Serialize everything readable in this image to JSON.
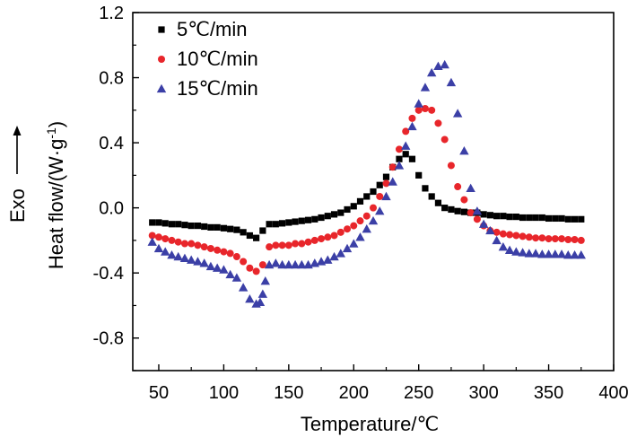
{
  "chart_data": {
    "type": "scatter",
    "xlabel": "Temperature/℃",
    "ylabel": "Heat flow/(W·g",
    "ylabel_sup": "-1",
    "ylabel_close": ")",
    "side_label": "Exo",
    "xlim": [
      30,
      400
    ],
    "ylim": [
      -1.0,
      1.2
    ],
    "xticks": [
      50,
      100,
      150,
      200,
      250,
      300,
      350,
      400
    ],
    "yticks": [
      -0.8,
      -0.4,
      0.0,
      0.4,
      0.8,
      1.2
    ],
    "ytick_labels": [
      "-0.8",
      "-0.4",
      "0.0",
      "0.4",
      "0.8",
      "1.2"
    ],
    "legend_position": "top-left",
    "series": [
      {
        "name": "5℃/min",
        "marker": "square",
        "color": "#000000",
        "points": [
          [
            45,
            -0.09
          ],
          [
            50,
            -0.09
          ],
          [
            55,
            -0.095
          ],
          [
            60,
            -0.1
          ],
          [
            65,
            -0.1
          ],
          [
            70,
            -0.105
          ],
          [
            75,
            -0.11
          ],
          [
            80,
            -0.11
          ],
          [
            85,
            -0.115
          ],
          [
            90,
            -0.12
          ],
          [
            95,
            -0.12
          ],
          [
            100,
            -0.125
          ],
          [
            105,
            -0.13
          ],
          [
            110,
            -0.135
          ],
          [
            115,
            -0.15
          ],
          [
            120,
            -0.17
          ],
          [
            125,
            -0.185
          ],
          [
            130,
            -0.14
          ],
          [
            135,
            -0.1
          ],
          [
            140,
            -0.1
          ],
          [
            145,
            -0.095
          ],
          [
            150,
            -0.09
          ],
          [
            155,
            -0.085
          ],
          [
            160,
            -0.08
          ],
          [
            165,
            -0.075
          ],
          [
            170,
            -0.07
          ],
          [
            175,
            -0.06
          ],
          [
            180,
            -0.05
          ],
          [
            185,
            -0.04
          ],
          [
            190,
            -0.03
          ],
          [
            195,
            -0.01
          ],
          [
            200,
            0.01
          ],
          [
            205,
            0.04
          ],
          [
            210,
            0.07
          ],
          [
            215,
            0.1
          ],
          [
            220,
            0.14
          ],
          [
            225,
            0.19
          ],
          [
            230,
            0.25
          ],
          [
            235,
            0.3
          ],
          [
            240,
            0.33
          ],
          [
            245,
            0.3
          ],
          [
            250,
            0.2
          ],
          [
            255,
            0.12
          ],
          [
            260,
            0.07
          ],
          [
            265,
            0.03
          ],
          [
            270,
            0.0
          ],
          [
            275,
            -0.01
          ],
          [
            280,
            -0.02
          ],
          [
            285,
            -0.025
          ],
          [
            290,
            -0.03
          ],
          [
            295,
            -0.03
          ],
          [
            300,
            -0.04
          ],
          [
            305,
            -0.045
          ],
          [
            310,
            -0.05
          ],
          [
            315,
            -0.05
          ],
          [
            320,
            -0.055
          ],
          [
            325,
            -0.055
          ],
          [
            330,
            -0.06
          ],
          [
            335,
            -0.06
          ],
          [
            340,
            -0.06
          ],
          [
            345,
            -0.06
          ],
          [
            350,
            -0.065
          ],
          [
            355,
            -0.065
          ],
          [
            360,
            -0.065
          ],
          [
            365,
            -0.07
          ],
          [
            370,
            -0.07
          ],
          [
            375,
            -0.07
          ]
        ]
      },
      {
        "name": "10℃/min",
        "marker": "circle",
        "color": "#e8262b",
        "points": [
          [
            45,
            -0.17
          ],
          [
            50,
            -0.18
          ],
          [
            55,
            -0.19
          ],
          [
            60,
            -0.2
          ],
          [
            65,
            -0.21
          ],
          [
            70,
            -0.22
          ],
          [
            75,
            -0.22
          ],
          [
            80,
            -0.23
          ],
          [
            85,
            -0.24
          ],
          [
            90,
            -0.25
          ],
          [
            95,
            -0.26
          ],
          [
            100,
            -0.27
          ],
          [
            105,
            -0.28
          ],
          [
            110,
            -0.3
          ],
          [
            115,
            -0.33
          ],
          [
            120,
            -0.37
          ],
          [
            125,
            -0.39
          ],
          [
            130,
            -0.35
          ],
          [
            135,
            -0.24
          ],
          [
            140,
            -0.23
          ],
          [
            145,
            -0.23
          ],
          [
            150,
            -0.23
          ],
          [
            155,
            -0.22
          ],
          [
            160,
            -0.22
          ],
          [
            165,
            -0.21
          ],
          [
            170,
            -0.2
          ],
          [
            175,
            -0.19
          ],
          [
            180,
            -0.18
          ],
          [
            185,
            -0.17
          ],
          [
            190,
            -0.15
          ],
          [
            195,
            -0.13
          ],
          [
            200,
            -0.11
          ],
          [
            205,
            -0.08
          ],
          [
            210,
            -0.05
          ],
          [
            215,
            0.0
          ],
          [
            220,
            0.07
          ],
          [
            225,
            0.15
          ],
          [
            230,
            0.25
          ],
          [
            235,
            0.36
          ],
          [
            240,
            0.47
          ],
          [
            245,
            0.55
          ],
          [
            250,
            0.6
          ],
          [
            255,
            0.61
          ],
          [
            260,
            0.6
          ],
          [
            265,
            0.52
          ],
          [
            270,
            0.42
          ],
          [
            275,
            0.26
          ],
          [
            280,
            0.13
          ],
          [
            285,
            0.05
          ],
          [
            290,
            -0.03
          ],
          [
            295,
            -0.07
          ],
          [
            300,
            -0.11
          ],
          [
            305,
            -0.14
          ],
          [
            310,
            -0.15
          ],
          [
            315,
            -0.16
          ],
          [
            320,
            -0.165
          ],
          [
            325,
            -0.17
          ],
          [
            330,
            -0.175
          ],
          [
            335,
            -0.18
          ],
          [
            340,
            -0.185
          ],
          [
            345,
            -0.185
          ],
          [
            350,
            -0.19
          ],
          [
            355,
            -0.19
          ],
          [
            360,
            -0.19
          ],
          [
            365,
            -0.195
          ],
          [
            370,
            -0.195
          ],
          [
            375,
            -0.2
          ]
        ]
      },
      {
        "name": "15℃/min",
        "marker": "triangle",
        "color": "#3b3fa6",
        "points": [
          [
            45,
            -0.21
          ],
          [
            50,
            -0.25
          ],
          [
            55,
            -0.27
          ],
          [
            60,
            -0.29
          ],
          [
            65,
            -0.3
          ],
          [
            70,
            -0.31
          ],
          [
            75,
            -0.32
          ],
          [
            80,
            -0.33
          ],
          [
            85,
            -0.34
          ],
          [
            90,
            -0.36
          ],
          [
            95,
            -0.37
          ],
          [
            100,
            -0.38
          ],
          [
            105,
            -0.41
          ],
          [
            110,
            -0.43
          ],
          [
            115,
            -0.49
          ],
          [
            120,
            -0.56
          ],
          [
            125,
            -0.59
          ],
          [
            128,
            -0.58
          ],
          [
            130,
            -0.53
          ],
          [
            132,
            -0.45
          ],
          [
            135,
            -0.35
          ],
          [
            140,
            -0.34
          ],
          [
            145,
            -0.35
          ],
          [
            150,
            -0.35
          ],
          [
            155,
            -0.35
          ],
          [
            160,
            -0.35
          ],
          [
            165,
            -0.35
          ],
          [
            170,
            -0.34
          ],
          [
            175,
            -0.33
          ],
          [
            180,
            -0.32
          ],
          [
            185,
            -0.3
          ],
          [
            190,
            -0.28
          ],
          [
            195,
            -0.25
          ],
          [
            200,
            -0.22
          ],
          [
            205,
            -0.18
          ],
          [
            210,
            -0.13
          ],
          [
            215,
            -0.08
          ],
          [
            220,
            -0.02
          ],
          [
            225,
            0.07
          ],
          [
            230,
            0.16
          ],
          [
            235,
            0.26
          ],
          [
            240,
            0.38
          ],
          [
            245,
            0.5
          ],
          [
            250,
            0.64
          ],
          [
            255,
            0.74
          ],
          [
            260,
            0.83
          ],
          [
            265,
            0.87
          ],
          [
            270,
            0.88
          ],
          [
            275,
            0.77
          ],
          [
            280,
            0.58
          ],
          [
            285,
            0.35
          ],
          [
            290,
            0.12
          ],
          [
            295,
            -0.02
          ],
          [
            300,
            -0.1
          ],
          [
            305,
            -0.14
          ],
          [
            310,
            -0.2
          ],
          [
            315,
            -0.24
          ],
          [
            320,
            -0.26
          ],
          [
            325,
            -0.27
          ],
          [
            330,
            -0.275
          ],
          [
            335,
            -0.28
          ],
          [
            340,
            -0.28
          ],
          [
            345,
            -0.285
          ],
          [
            350,
            -0.285
          ],
          [
            355,
            -0.285
          ],
          [
            360,
            -0.285
          ],
          [
            365,
            -0.29
          ],
          [
            370,
            -0.29
          ],
          [
            375,
            -0.29
          ]
        ]
      }
    ]
  }
}
